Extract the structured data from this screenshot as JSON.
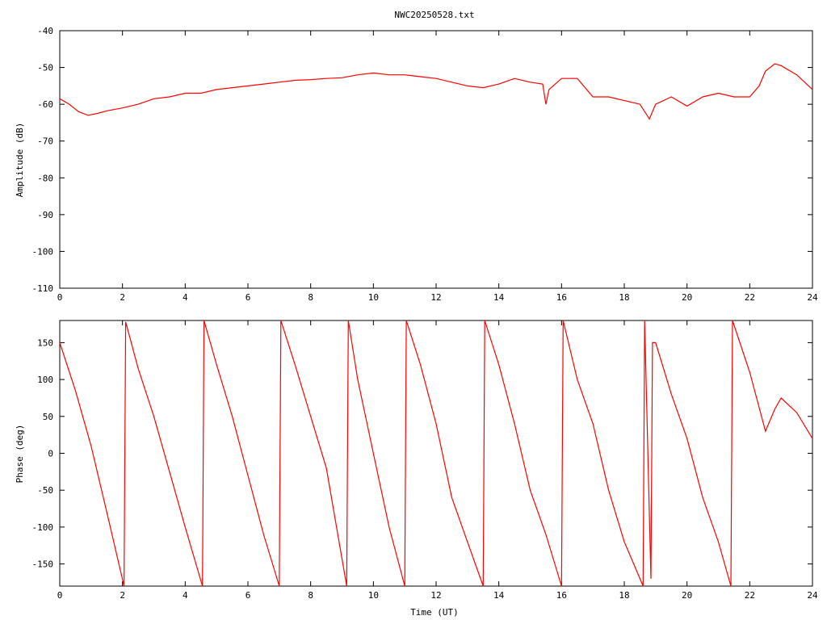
{
  "figure": {
    "title": "NWC20250528.txt",
    "xlabel": "Time (UT)"
  },
  "chart_data": [
    {
      "type": "line",
      "title": "NWC20250528.txt",
      "xlabel": "",
      "ylabel": "Amplitude (dB)",
      "xlim": [
        0,
        24
      ],
      "ylim": [
        -110,
        -40
      ],
      "x_ticks": [
        0,
        2,
        4,
        6,
        8,
        10,
        12,
        14,
        16,
        18,
        20,
        22,
        24
      ],
      "y_ticks": [
        -40,
        -50,
        -60,
        -70,
        -80,
        -90,
        -100,
        -110
      ],
      "x_tick_labels": [
        "0",
        "2",
        "4",
        "6",
        "8",
        "10",
        "12",
        "14",
        "16",
        "18",
        "20",
        "22",
        "24"
      ],
      "y_tick_labels": [
        "-40",
        "-50",
        "-60",
        "-70",
        "-80",
        "-90",
        "-100",
        "-110"
      ],
      "grid": false,
      "series": [
        {
          "color": "#ff0000",
          "x": [
            0,
            0.3,
            0.6,
            0.9,
            1.2,
            1.5,
            2.0,
            2.5,
            3.0,
            3.5,
            4.0,
            4.5,
            5.0,
            5.5,
            6.0,
            6.5,
            7.0,
            7.5,
            8.0,
            8.5,
            9.0,
            9.5,
            10.0,
            10.5,
            11.0,
            11.5,
            12.0,
            12.5,
            13.0,
            13.5,
            14.0,
            14.5,
            15.0,
            15.4,
            15.5,
            15.6,
            16.0,
            16.5,
            17.0,
            17.5,
            18.0,
            18.5,
            18.8,
            19.0,
            19.5,
            20.0,
            20.5,
            21.0,
            21.5,
            22.0,
            22.3,
            22.5,
            22.8,
            23.0,
            23.5,
            24.0
          ],
          "values": [
            -58.5,
            -60,
            -62,
            -63,
            -62.5,
            -61.8,
            -61,
            -60,
            -58.5,
            -58,
            -57,
            -57,
            -56,
            -55.5,
            -55,
            -54.5,
            -54,
            -53.5,
            -53.3,
            -53,
            -52.8,
            -52,
            -51.5,
            -52,
            -52,
            -52.5,
            -53,
            -54,
            -55,
            -55.5,
            -54.5,
            -53,
            -54,
            -54.5,
            -60,
            -56,
            -53,
            -53,
            -58,
            -58,
            -59,
            -60,
            -64,
            -60,
            -58,
            -60.5,
            -58,
            -57,
            -58,
            -58,
            -55,
            -51,
            -49,
            -49.5,
            -52,
            -56
          ]
        }
      ]
    },
    {
      "type": "line",
      "title": "",
      "xlabel": "Time (UT)",
      "ylabel": "Phase (deg)",
      "xlim": [
        0,
        24
      ],
      "ylim": [
        -180,
        180
      ],
      "x_ticks": [
        0,
        2,
        4,
        6,
        8,
        10,
        12,
        14,
        16,
        18,
        20,
        22,
        24
      ],
      "y_ticks": [
        150,
        100,
        50,
        0,
        -50,
        -100,
        -150
      ],
      "x_tick_labels": [
        "0",
        "2",
        "4",
        "6",
        "8",
        "10",
        "12",
        "14",
        "16",
        "18",
        "20",
        "22",
        "24"
      ],
      "y_tick_labels": [
        "150",
        "100",
        "50",
        "0",
        "-50",
        "-100",
        "-150"
      ],
      "grid": false,
      "series": [
        {
          "color": "#ff0000",
          "x": [
            0,
            0.5,
            1.0,
            1.5,
            2.05,
            2.1,
            2.5,
            3.0,
            3.5,
            4.0,
            4.55,
            4.6,
            5.0,
            5.5,
            6.0,
            6.5,
            7.0,
            7.05,
            7.5,
            8.0,
            8.5,
            9.15,
            9.2,
            9.5,
            10.0,
            10.5,
            11.0,
            11.05,
            11.5,
            12.0,
            12.5,
            13.0,
            13.5,
            13.55,
            14.0,
            14.5,
            15.0,
            15.5,
            16.0,
            16.05,
            16.5,
            17.0,
            17.5,
            18.0,
            18.3,
            18.6,
            18.65,
            18.85,
            18.9,
            19.0,
            19.5,
            20.0,
            20.5,
            21.0,
            21.4,
            21.45,
            22.0,
            22.5,
            22.8,
            23.0,
            23.5,
            24.0
          ],
          "values": [
            150,
            85,
            10,
            -80,
            -180,
            178,
            115,
            50,
            -25,
            -100,
            -180,
            180,
            120,
            50,
            -30,
            -110,
            -180,
            180,
            120,
            50,
            -20,
            -180,
            180,
            100,
            0,
            -100,
            -180,
            180,
            120,
            40,
            -60,
            -120,
            -180,
            180,
            120,
            40,
            -50,
            -110,
            -180,
            180,
            100,
            40,
            -50,
            -120,
            -150,
            -180,
            180,
            -170,
            150,
            150,
            80,
            20,
            -60,
            -120,
            -180,
            180,
            110,
            30,
            60,
            75,
            55,
            20
          ]
        }
      ]
    }
  ]
}
